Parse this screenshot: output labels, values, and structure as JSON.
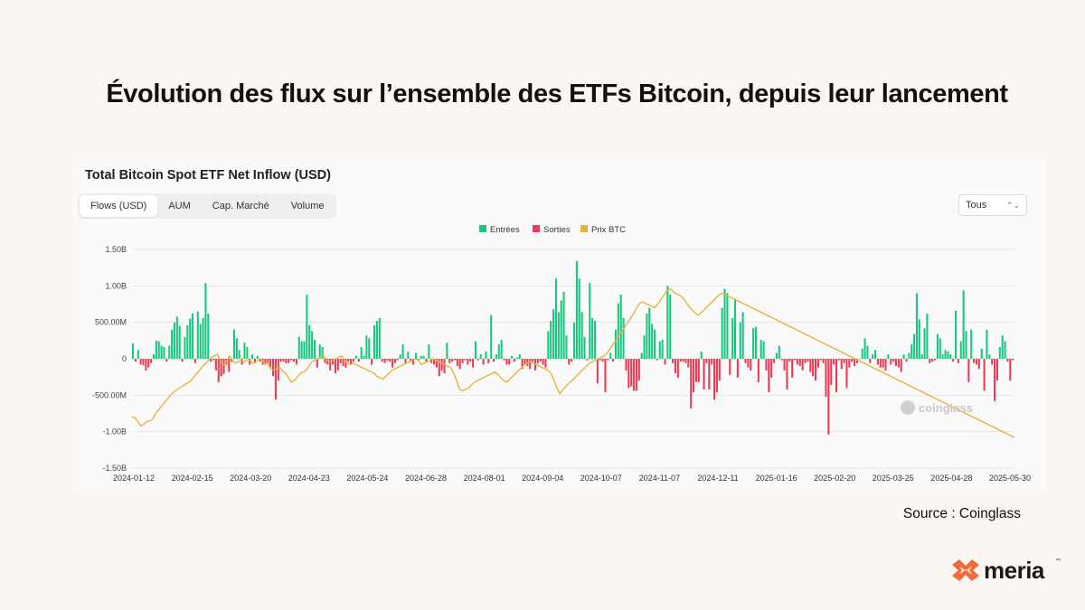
{
  "headline": "Évolution des flux sur l’ensemble des ETFs Bitcoin, depuis leur lancement",
  "source": "Source : Coinglass",
  "brand": {
    "name": "meria",
    "tm": "™",
    "accent": "#f26b3a"
  },
  "card": {
    "title": "Total Bitcoin Spot ETF Net Inflow (USD)",
    "tabs": [
      "Flows (USD)",
      "AUM",
      "Cap. Marché",
      "Volume"
    ],
    "active_tab": "Flows (USD)",
    "range_select": "Tous",
    "watermark": "coinglass"
  },
  "colors": {
    "inflow": "#18c87f",
    "outflow": "#ec3b52",
    "price": "#e9b23d"
  },
  "chart_data": {
    "type": "bar",
    "title": "Total Bitcoin Spot ETF Net Inflow (USD)",
    "legend": [
      "Entrées",
      "Sorties",
      "Prix BTC"
    ],
    "legend_position": "top-center",
    "grid": true,
    "ylim": [
      -1500000000,
      1500000000
    ],
    "y_ticks": [
      {
        "value": 1500000000,
        "label": "1.50B"
      },
      {
        "value": 1000000000,
        "label": "1.00B"
      },
      {
        "value": 500000000,
        "label": "500.00M"
      },
      {
        "value": 0,
        "label": "0"
      },
      {
        "value": -500000000,
        "label": "-500.00M"
      },
      {
        "value": -1000000000,
        "label": "-1.00B"
      },
      {
        "value": -1500000000,
        "label": "-1.50B"
      }
    ],
    "x_ticks": [
      "2024-01-12",
      "2024-02-15",
      "2024-03-20",
      "2024-04-23",
      "2024-05-24",
      "2024-06-28",
      "2024-08-01",
      "2024-09-04",
      "2024-10-07",
      "2024-11-07",
      "2024-12-11",
      "2025-01-16",
      "2025-02-20",
      "2025-03-25",
      "2025-04-28",
      "2025-05-30"
    ],
    "flows_musd": [
      210,
      -40,
      120,
      -80,
      -90,
      -160,
      -120,
      -60,
      60,
      250,
      240,
      180,
      160,
      -40,
      180,
      400,
      500,
      580,
      450,
      -40,
      300,
      460,
      550,
      620,
      -60,
      650,
      480,
      560,
      1040,
      620,
      -40,
      -20,
      -160,
      -320,
      -240,
      -210,
      -80,
      -180,
      -40,
      400,
      280,
      120,
      -80,
      220,
      160,
      -80,
      60,
      -60,
      40,
      -40,
      -80,
      -60,
      -60,
      -120,
      -240,
      -560,
      -300,
      -40,
      -40,
      -60,
      -60,
      -20,
      -40,
      -80,
      300,
      240,
      240,
      880,
      460,
      380,
      260,
      -120,
      200,
      160,
      -60,
      -80,
      -160,
      -80,
      -200,
      -160,
      -60,
      -100,
      -120,
      -40,
      -80,
      -40,
      40,
      -40,
      160,
      40,
      320,
      280,
      -80,
      460,
      520,
      560,
      -40,
      -60,
      -30,
      -40,
      -120,
      -60,
      -20,
      60,
      200,
      -60,
      100,
      -40,
      -80,
      80,
      -20,
      40,
      40,
      -40,
      200,
      -60,
      -80,
      -120,
      -240,
      -160,
      -200,
      220,
      -60,
      -40,
      -20,
      -100,
      -140,
      -60,
      -20,
      -80,
      -40,
      -120,
      240,
      -20,
      60,
      -80,
      100,
      -60,
      600,
      -40,
      60,
      200,
      260,
      -20,
      -80,
      -80,
      40,
      -40,
      20,
      60,
      -140,
      -80,
      -100,
      -140,
      -40,
      -160,
      -60,
      -40,
      -80,
      -120,
      380,
      520,
      680,
      1100,
      640,
      800,
      920,
      320,
      -80,
      -40,
      500,
      1340,
      1100,
      640,
      300,
      -20,
      1040,
      560,
      520,
      -340,
      -20,
      -40,
      -460,
      -20,
      80,
      -40,
      400,
      760,
      880,
      560,
      -160,
      -400,
      -380,
      -440,
      -440,
      -300,
      80,
      320,
      620,
      700,
      480,
      400,
      -20,
      240,
      260,
      -80,
      1000,
      880,
      -60,
      -200,
      -260,
      -40,
      -40,
      -60,
      -120,
      -680,
      -460,
      -320,
      -320,
      100,
      -420,
      -60,
      -420,
      -80,
      -560,
      -460,
      -300,
      700,
      960,
      900,
      -220,
      560,
      820,
      -260,
      500,
      640,
      -60,
      -120,
      -160,
      420,
      440,
      -320,
      260,
      240,
      -160,
      -460,
      -260,
      -60,
      80,
      180,
      -20,
      -160,
      -420,
      -40,
      -260,
      -20,
      -80,
      -100,
      -160,
      -60,
      -40,
      -180,
      -240,
      -300,
      -120,
      -20,
      -60,
      -520,
      -1040,
      -360,
      -80,
      -460,
      -20,
      -140,
      -60,
      -400,
      -120,
      -40,
      -100,
      -60,
      0,
      140,
      280,
      180,
      -60,
      60,
      120,
      -80,
      -120,
      -120,
      -160,
      60,
      -80,
      -40,
      -100,
      -120,
      -180,
      60,
      -40,
      80,
      200,
      340,
      900,
      540,
      60,
      420,
      620,
      -60,
      -40,
      -20,
      340,
      280,
      60,
      120,
      100,
      60,
      -40,
      660,
      -60,
      240,
      940,
      380,
      -320,
      400,
      -60,
      -80,
      -140,
      140,
      -440,
      400,
      60,
      -80,
      -580,
      -300,
      160,
      320,
      240,
      -40,
      -300,
      -20
    ],
    "price_series": {
      "name": "Prix BTC",
      "values": [
        -800,
        -810,
        -860,
        -920,
        -900,
        -860,
        -850,
        -830,
        -750,
        -700,
        -650,
        -600,
        -550,
        -500,
        -460,
        -430,
        -400,
        -380,
        -350,
        -330,
        -300,
        -250,
        -200,
        -150,
        -100,
        -60,
        -20,
        20,
        40,
        60,
        -40,
        -80,
        -40,
        40,
        -20,
        -60,
        -40,
        -20,
        -40,
        -20,
        -20,
        -60,
        -40,
        -10,
        -20,
        -80,
        -60,
        -140,
        -160,
        -140,
        -120,
        -160,
        -200,
        -260,
        -320,
        -300,
        -250,
        -200,
        -180,
        -160,
        -100,
        -40,
        -20,
        0,
        20,
        40,
        -20,
        -40,
        -20,
        0,
        20,
        40,
        -20,
        -60,
        -80,
        -60,
        -80,
        -100,
        -120,
        -140,
        -160,
        -180,
        -200,
        -240,
        -260,
        -280,
        -240,
        -200,
        -160,
        -140,
        -120,
        -100,
        -80,
        -60,
        -40,
        -20,
        0,
        -20,
        -80,
        -60,
        -40,
        -20,
        0,
        -20,
        -40,
        -60,
        -80,
        -100,
        -120,
        -200,
        -300,
        -420,
        -440,
        -420,
        -400,
        -360,
        -320,
        -300,
        -280,
        -260,
        -240,
        -220,
        -200,
        -180,
        -220,
        -260,
        -300,
        -320,
        -280,
        -240,
        -200,
        -160,
        -120,
        -80,
        -60,
        -40,
        -60,
        -80,
        -100,
        -120,
        -140,
        -160,
        -200,
        -300,
        -400,
        -480,
        -420,
        -380,
        -340,
        -300,
        -260,
        -220,
        -180,
        -140,
        -100,
        -60,
        -40,
        -20,
        0,
        20,
        40,
        80,
        140,
        200,
        260,
        320,
        380,
        440,
        500,
        560,
        620,
        700,
        760,
        780,
        760,
        740,
        720,
        700,
        740,
        800,
        860,
        920,
        960,
        940,
        900,
        880,
        860,
        820,
        760,
        700,
        660,
        620,
        600,
        640,
        680,
        720,
        760,
        800,
        840,
        880,
        900,
        880,
        860,
        840,
        820,
        800,
        780,
        760,
        740,
        720,
        700,
        680,
        660,
        640,
        620,
        600,
        580,
        560,
        540,
        520,
        500,
        480,
        460,
        440,
        420,
        400,
        380,
        360,
        340,
        320,
        300,
        280,
        260,
        240,
        220,
        200,
        180,
        160,
        140,
        120,
        100,
        80,
        60,
        40,
        20,
        0,
        -20,
        -40,
        -60,
        -80,
        -100,
        -120,
        -140,
        -160,
        -180,
        -200,
        -220,
        -240,
        -260,
        -280,
        -300,
        -320,
        -340,
        -360,
        -380,
        -400,
        -420,
        -440,
        -460,
        -480,
        -500,
        -520,
        -540,
        -560,
        -580,
        -600,
        -620,
        -640,
        -660,
        -680,
        -700,
        -720,
        -740,
        -760,
        -780,
        -800,
        -820,
        -840,
        -860,
        -880,
        -900,
        -920,
        -940,
        -960,
        -980,
        -1000,
        -1020,
        -1040,
        -1060,
        -1080
      ]
    }
  }
}
